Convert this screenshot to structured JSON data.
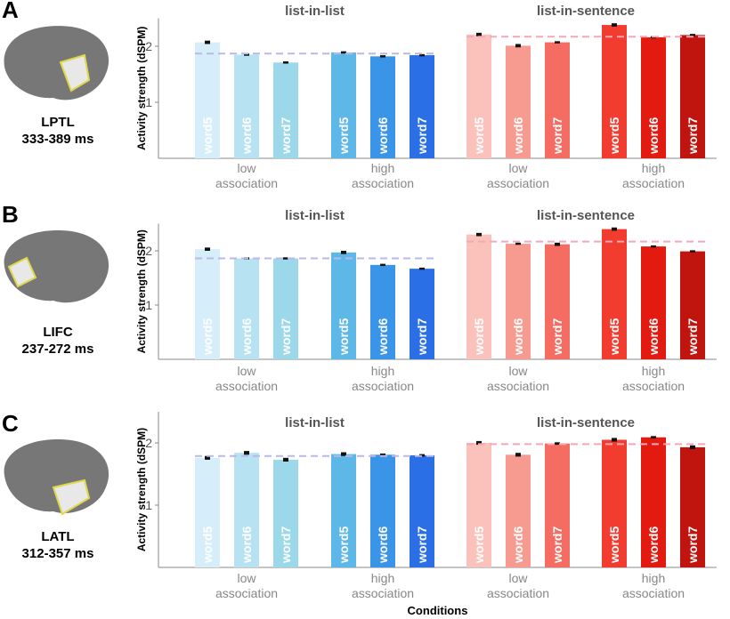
{
  "chart_data": [
    {
      "type": "bar",
      "panel": "A",
      "region": "LPTL",
      "time": "333-389 ms",
      "ylabel": "Activity strength (dSPM)",
      "ylim": [
        0,
        2.5
      ],
      "yticks": [
        1,
        2
      ],
      "group_titles": [
        "list-in-list",
        "list-in-sentence"
      ],
      "subgroup_labels": [
        [
          "low",
          "association"
        ],
        [
          "high",
          "association"
        ],
        [
          "low",
          "association"
        ],
        [
          "high",
          "association"
        ]
      ],
      "categories": [
        "word5",
        "word6",
        "word7",
        "word5",
        "word6",
        "word7",
        "word5",
        "word6",
        "word7",
        "word5",
        "word6",
        "word7"
      ],
      "values": [
        2.07,
        1.85,
        1.71,
        1.89,
        1.82,
        1.84,
        2.21,
        2.01,
        2.07,
        2.38,
        2.16,
        2.2
      ],
      "errors": [
        0.03,
        0.02,
        0.02,
        0.02,
        0.02,
        0.02,
        0.03,
        0.03,
        0.02,
        0.03,
        0.02,
        0.02
      ],
      "colors": [
        "#d6eef9",
        "#b7e2f2",
        "#9bd8ea",
        "#5db8e8",
        "#3a95e8",
        "#2a6fe6",
        "#fbc2bb",
        "#f79b91",
        "#f46c62",
        "#f23c2f",
        "#e31a0f",
        "#c0150f"
      ],
      "means": [
        1.87,
        2.17
      ],
      "mean_colors": [
        "#b9b8e8",
        "#f4a7b5"
      ]
    },
    {
      "type": "bar",
      "panel": "B",
      "region": "LIFC",
      "time": "237-272 ms",
      "ylabel": "Activity strength (dSPM)",
      "ylim": [
        0,
        2.5
      ],
      "yticks": [
        1,
        2
      ],
      "group_titles": [
        "list-in-list",
        "list-in-sentence"
      ],
      "subgroup_labels": [
        [
          "low",
          "association"
        ],
        [
          "high",
          "association"
        ],
        [
          "low",
          "association"
        ],
        [
          "high",
          "association"
        ]
      ],
      "categories": [
        "word5",
        "word6",
        "word7",
        "word5",
        "word6",
        "word7",
        "word5",
        "word6",
        "word7",
        "word5",
        "word6",
        "word7"
      ],
      "values": [
        2.03,
        1.86,
        1.86,
        1.97,
        1.74,
        1.67,
        2.3,
        2.13,
        2.12,
        2.4,
        2.08,
        1.99
      ],
      "errors": [
        0.03,
        0.02,
        0.02,
        0.03,
        0.02,
        0.02,
        0.03,
        0.02,
        0.03,
        0.03,
        0.02,
        0.02
      ],
      "colors": [
        "#d6eef9",
        "#b7e2f2",
        "#9bd8ea",
        "#5db8e8",
        "#3a95e8",
        "#2a6fe6",
        "#fbc2bb",
        "#f79b91",
        "#f46c62",
        "#f23c2f",
        "#e31a0f",
        "#c0150f"
      ],
      "means": [
        1.86,
        2.17
      ],
      "mean_colors": [
        "#b9b8e8",
        "#f4a7b5"
      ]
    },
    {
      "type": "bar",
      "panel": "C",
      "region": "LATL",
      "time": "312-357 ms",
      "ylabel": "Activity strength (dSPM)",
      "ylim": [
        0,
        2.5
      ],
      "yticks": [
        1,
        2
      ],
      "xlabel": "Conditions",
      "group_titles": [
        "list-in-list",
        "list-in-sentence"
      ],
      "subgroup_labels": [
        [
          "low",
          "association"
        ],
        [
          "high",
          "association"
        ],
        [
          "low",
          "association"
        ],
        [
          "high",
          "association"
        ]
      ],
      "categories": [
        "word5",
        "word6",
        "word7",
        "word5",
        "word6",
        "word7",
        "word5",
        "word6",
        "word7",
        "word5",
        "word6",
        "word7"
      ],
      "values": [
        1.76,
        1.84,
        1.73,
        1.82,
        1.81,
        1.8,
        2.0,
        1.81,
        1.99,
        2.05,
        2.09,
        1.93
      ],
      "errors": [
        0.03,
        0.03,
        0.03,
        0.03,
        0.02,
        0.02,
        0.03,
        0.03,
        0.02,
        0.03,
        0.02,
        0.03
      ],
      "colors": [
        "#d6eef9",
        "#b7e2f2",
        "#9bd8ea",
        "#5db8e8",
        "#3a95e8",
        "#2a6fe6",
        "#fbc2bb",
        "#f79b91",
        "#f46c62",
        "#f23c2f",
        "#e31a0f",
        "#c0150f"
      ],
      "means": [
        1.79,
        1.98
      ],
      "mean_colors": [
        "#b9b8e8",
        "#f4a7b5"
      ]
    }
  ]
}
